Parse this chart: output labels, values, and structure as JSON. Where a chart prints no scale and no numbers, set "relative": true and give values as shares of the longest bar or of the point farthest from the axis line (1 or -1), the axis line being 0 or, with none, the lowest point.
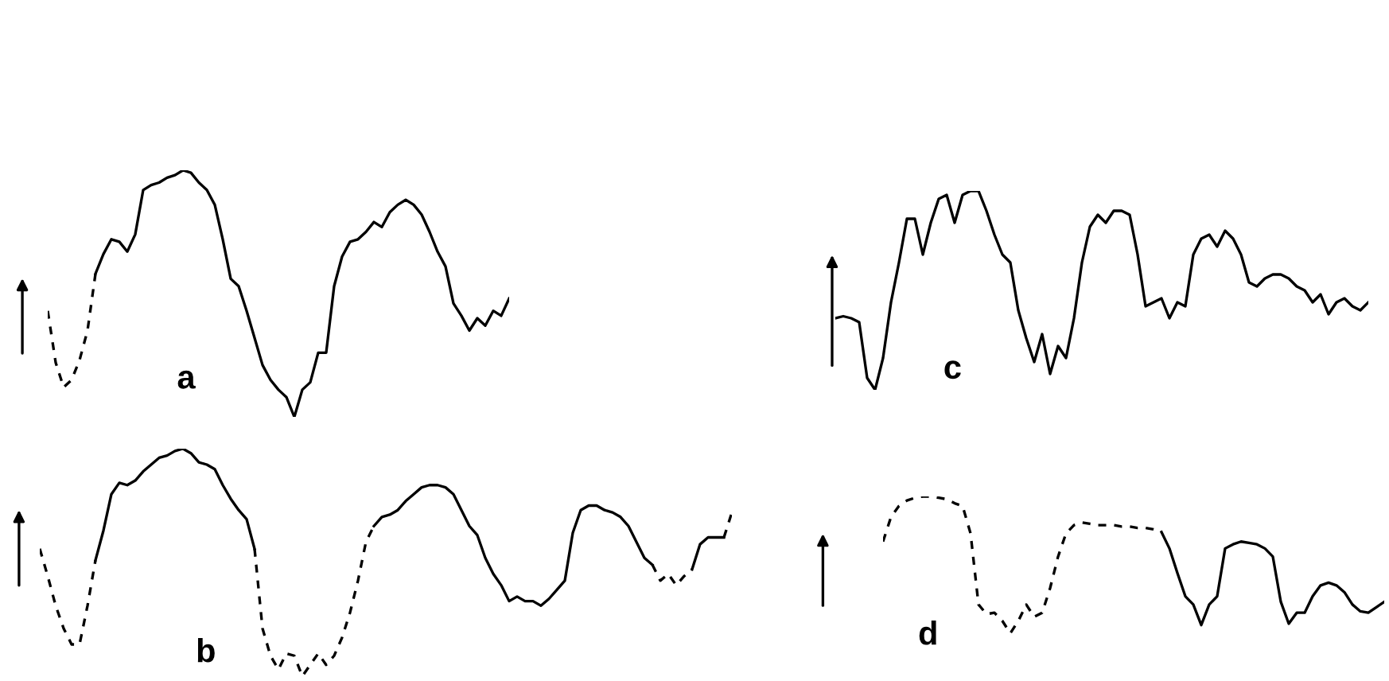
{
  "chart_data": [
    {
      "type": "line",
      "relative": true,
      "annotations": [
        "a"
      ],
      "categories": [
        null,
        null,
        null,
        null,
        null,
        null,
        null,
        null,
        null,
        null,
        null,
        null,
        null,
        null,
        null,
        null,
        null,
        null,
        null,
        null,
        null,
        null,
        null,
        null,
        null,
        null,
        null,
        null,
        null,
        null,
        null,
        null,
        null,
        null,
        null,
        null,
        null,
        null,
        null,
        null,
        null,
        null,
        null,
        null,
        null,
        null,
        null,
        null,
        null,
        null,
        null,
        null,
        null,
        null,
        null,
        null,
        null,
        null,
        null
      ],
      "series": [
        {
          "color": "#000000",
          "line_style": "dashed",
          "values": [
            0.43,
            0.22,
            0.12,
            0.15,
            0.23,
            0.35,
            0.58,
            null,
            null,
            null,
            null,
            null,
            null,
            null,
            null,
            null,
            null,
            null,
            null,
            null,
            null,
            null,
            null,
            null,
            null,
            null,
            null,
            null,
            null,
            null,
            null,
            null,
            null,
            null,
            null,
            null,
            null,
            null,
            null,
            null,
            null,
            null,
            null,
            null,
            null,
            null,
            null,
            null,
            null,
            null,
            null,
            null,
            null,
            null,
            null,
            null,
            null,
            null,
            null
          ]
        },
        {
          "color": "#000000",
          "line_style": "solid",
          "values": [
            null,
            null,
            null,
            null,
            null,
            null,
            0.58,
            0.66,
            0.72,
            0.71,
            0.67,
            0.74,
            0.92,
            0.94,
            0.95,
            0.97,
            0.98,
            1,
            0.99,
            0.95,
            0.92,
            0.86,
            0.72,
            0.56,
            0.53,
            0.43,
            0.32,
            0.21,
            0.15,
            0.11,
            0.08,
            0,
            0.11,
            0.14,
            0.26,
            0.26,
            0.53,
            0.65,
            0.71,
            0.72,
            0.75,
            0.79,
            0.77,
            0.83,
            0.86,
            0.88,
            0.86,
            0.82,
            0.75,
            0.67,
            0.61,
            0.46,
            0.41,
            0.35,
            0.4,
            0.37,
            0.43,
            0.41,
            0.48
          ]
        }
      ]
    },
    {
      "type": "line",
      "relative": true,
      "annotations": [
        "c"
      ],
      "categories": [
        null,
        null,
        null,
        null,
        null,
        null,
        null,
        null,
        null,
        null,
        null,
        null,
        null,
        null,
        null,
        null,
        null,
        null,
        null,
        null,
        null,
        null,
        null,
        null,
        null,
        null,
        null,
        null,
        null,
        null,
        null,
        null,
        null,
        null,
        null,
        null,
        null,
        null,
        null,
        null,
        null,
        null,
        null,
        null,
        null,
        null,
        null,
        null,
        null,
        null,
        null,
        null,
        null,
        null,
        null,
        null,
        null,
        null,
        null,
        null,
        null,
        null,
        null,
        null,
        null,
        null,
        null,
        null
      ],
      "series": [
        {
          "color": "#000000",
          "line_style": "solid",
          "values": [
            0.36,
            0.37,
            0.36,
            0.34,
            0.06,
            0,
            0.16,
            0.44,
            0.64,
            0.86,
            0.86,
            0.68,
            0.84,
            0.96,
            0.98,
            0.84,
            0.98,
            1,
            1,
            0.9,
            0.78,
            0.68,
            0.64,
            0.4,
            0.26,
            0.14,
            0.28,
            0.08,
            0.22,
            0.16,
            0.36,
            0.64,
            0.82,
            0.88,
            0.84,
            0.9,
            0.9,
            0.88,
            0.68,
            0.42,
            0.44,
            0.46,
            0.36,
            0.44,
            0.42,
            0.68,
            0.76,
            0.78,
            0.72,
            0.8,
            0.76,
            0.68,
            0.54,
            0.52,
            0.56,
            0.58,
            0.58,
            0.56,
            0.52,
            0.5,
            0.44,
            0.48,
            0.38,
            0.44,
            0.46,
            0.42,
            0.4,
            0.44
          ]
        }
      ]
    },
    {
      "type": "line",
      "relative": true,
      "annotations": [
        "b"
      ],
      "categories": [
        null,
        null,
        null,
        null,
        null,
        null,
        null,
        null,
        null,
        null,
        null,
        null,
        null,
        null,
        null,
        null,
        null,
        null,
        null,
        null,
        null,
        null,
        null,
        null,
        null,
        null,
        null,
        null,
        null,
        null,
        null,
        null,
        null,
        null,
        null,
        null,
        null,
        null,
        null,
        null,
        null,
        null,
        null,
        null,
        null,
        null,
        null,
        null,
        null,
        null,
        null,
        null,
        null,
        null,
        null,
        null,
        null,
        null,
        null,
        null,
        null,
        null,
        null,
        null,
        null,
        null,
        null,
        null,
        null,
        null,
        null,
        null,
        null,
        null,
        null,
        null,
        null,
        null,
        null,
        null,
        null,
        null,
        null,
        null,
        null,
        null,
        null,
        null
      ],
      "series": [
        {
          "color": "#000000",
          "line_style": "dashed",
          "values": [
            0.56,
            0.44,
            0.31,
            0.21,
            0.14,
            0.14,
            0.31,
            0.51,
            null,
            null,
            null,
            null,
            null,
            null,
            null,
            null,
            null,
            null,
            null,
            null,
            null,
            null,
            null,
            null,
            null,
            null,
            null,
            null,
            null,
            null,
            null,
            null,
            null,
            null,
            null,
            null,
            null,
            null,
            null,
            null,
            null,
            null,
            null,
            null,
            null,
            null,
            null,
            null,
            null,
            null,
            null,
            null,
            null,
            null,
            null,
            null,
            null,
            null,
            null,
            null,
            null,
            null,
            null,
            null,
            null,
            null,
            null,
            null,
            null,
            null,
            null,
            null,
            null,
            null,
            null,
            null,
            null,
            null,
            null,
            null,
            null,
            null,
            null,
            null,
            null,
            null,
            null,
            null
          ]
        },
        {
          "color": "#000000",
          "line_style": "solid",
          "values": [
            null,
            null,
            null,
            null,
            null,
            null,
            null,
            0.51,
            0.64,
            0.8,
            0.85,
            0.84,
            0.86,
            0.9,
            0.93,
            0.96,
            0.97,
            0.99,
            1,
            0.98,
            0.94,
            0.93,
            0.91,
            0.84,
            0.78,
            0.73,
            0.69,
            0.56,
            null,
            null,
            null,
            null,
            null,
            null,
            null,
            null,
            null,
            null,
            null,
            null,
            null,
            null,
            null,
            null,
            null,
            null,
            null,
            null,
            null,
            null,
            null,
            null,
            null,
            null,
            null,
            null,
            null,
            null,
            null,
            null,
            null,
            null,
            null,
            null,
            null,
            null,
            null,
            null,
            null,
            null,
            null,
            null,
            null,
            null,
            null,
            null,
            null,
            null,
            null,
            null,
            null,
            null,
            null,
            null,
            null,
            null,
            null,
            null
          ]
        },
        {
          "color": "#000000",
          "line_style": "dashed",
          "values": [
            null,
            null,
            null,
            null,
            null,
            null,
            null,
            null,
            null,
            null,
            null,
            null,
            null,
            null,
            null,
            null,
            null,
            null,
            null,
            null,
            null,
            null,
            null,
            null,
            null,
            null,
            null,
            0.56,
            0.21,
            0.09,
            0.03,
            0.1,
            0.09,
            0,
            0.05,
            0.1,
            0.05,
            0.09,
            0.17,
            0.28,
            0.42,
            0.59,
            0.66,
            null,
            null,
            null,
            null,
            null,
            null,
            null,
            null,
            null,
            null,
            null,
            null,
            null,
            null,
            null,
            null,
            null,
            null,
            null,
            null,
            null,
            null,
            null,
            null,
            null,
            null,
            null,
            null,
            null,
            null,
            null,
            null,
            null,
            null,
            null,
            null,
            null,
            null,
            null,
            null,
            null,
            null,
            null,
            null,
            null
          ]
        },
        {
          "color": "#000000",
          "line_style": "solid",
          "values": [
            null,
            null,
            null,
            null,
            null,
            null,
            null,
            null,
            null,
            null,
            null,
            null,
            null,
            null,
            null,
            null,
            null,
            null,
            null,
            null,
            null,
            null,
            null,
            null,
            null,
            null,
            null,
            null,
            null,
            null,
            null,
            null,
            null,
            null,
            null,
            null,
            null,
            null,
            null,
            null,
            null,
            null,
            0.66,
            0.7,
            0.71,
            0.73,
            0.77,
            0.8,
            0.83,
            0.84,
            0.84,
            0.83,
            0.8,
            0.73,
            0.66,
            0.62,
            0.52,
            0.45,
            0.4,
            0.33,
            0.35,
            0.33,
            0.33,
            0.31,
            0.34,
            0.38,
            0.42,
            0.63,
            0.73,
            0.75,
            0.75,
            0.73,
            0.72,
            0.7,
            0.66,
            0.59,
            0.52,
            0.49,
            null,
            null,
            null,
            null,
            null,
            null,
            null,
            null,
            null,
            null
          ]
        },
        {
          "color": "#000000",
          "line_style": "dashed",
          "values": [
            null,
            null,
            null,
            null,
            null,
            null,
            null,
            null,
            null,
            null,
            null,
            null,
            null,
            null,
            null,
            null,
            null,
            null,
            null,
            null,
            null,
            null,
            null,
            null,
            null,
            null,
            null,
            null,
            null,
            null,
            null,
            null,
            null,
            null,
            null,
            null,
            null,
            null,
            null,
            null,
            null,
            null,
            null,
            null,
            null,
            null,
            null,
            null,
            null,
            null,
            null,
            null,
            null,
            null,
            null,
            null,
            null,
            null,
            null,
            null,
            null,
            null,
            null,
            null,
            null,
            null,
            null,
            null,
            null,
            null,
            null,
            null,
            null,
            null,
            null,
            null,
            null,
            0.49,
            0.42,
            0.45,
            0.4,
            0.44,
            0.47,
            null,
            null,
            null,
            null,
            null
          ]
        },
        {
          "color": "#000000",
          "line_style": "solid",
          "values": [
            null,
            null,
            null,
            null,
            null,
            null,
            null,
            null,
            null,
            null,
            null,
            null,
            null,
            null,
            null,
            null,
            null,
            null,
            null,
            null,
            null,
            null,
            null,
            null,
            null,
            null,
            null,
            null,
            null,
            null,
            null,
            null,
            null,
            null,
            null,
            null,
            null,
            null,
            null,
            null,
            null,
            null,
            null,
            null,
            null,
            null,
            null,
            null,
            null,
            null,
            null,
            null,
            null,
            null,
            null,
            null,
            null,
            null,
            null,
            null,
            null,
            null,
            null,
            null,
            null,
            null,
            null,
            null,
            null,
            null,
            null,
            null,
            null,
            null,
            null,
            null,
            null,
            null,
            null,
            null,
            null,
            null,
            0.47,
            0.58,
            0.61,
            0.61,
            0.61,
            null
          ]
        },
        {
          "color": "#000000",
          "line_style": "dashed",
          "values": [
            null,
            null,
            null,
            null,
            null,
            null,
            null,
            null,
            null,
            null,
            null,
            null,
            null,
            null,
            null,
            null,
            null,
            null,
            null,
            null,
            null,
            null,
            null,
            null,
            null,
            null,
            null,
            null,
            null,
            null,
            null,
            null,
            null,
            null,
            null,
            null,
            null,
            null,
            null,
            null,
            null,
            null,
            null,
            null,
            null,
            null,
            null,
            null,
            null,
            null,
            null,
            null,
            null,
            null,
            null,
            null,
            null,
            null,
            null,
            null,
            null,
            null,
            null,
            null,
            null,
            null,
            null,
            null,
            null,
            null,
            null,
            null,
            null,
            null,
            null,
            null,
            null,
            null,
            null,
            null,
            null,
            null,
            null,
            null,
            null,
            null,
            0.61,
            0.72
          ]
        }
      ]
    },
    {
      "type": "line",
      "relative": true,
      "annotations": [
        "d"
      ],
      "categories": [
        null,
        null,
        null,
        null,
        null,
        null,
        null,
        null,
        null,
        null,
        null,
        null,
        null,
        null,
        null,
        null,
        null,
        null,
        null,
        null,
        null,
        null,
        null,
        null,
        null,
        null,
        null,
        null,
        null,
        null,
        null,
        null,
        null,
        null,
        null,
        null,
        null,
        null,
        null,
        null,
        null,
        null,
        null,
        null,
        null,
        null,
        null,
        null,
        null,
        null,
        null,
        null,
        null,
        null,
        null,
        null,
        null,
        null,
        null,
        null,
        null,
        null,
        null,
        null
      ],
      "series": [
        {
          "color": "#000000",
          "line_style": "dashed",
          "values": [
            0.67,
            0.85,
            0.93,
            0.97,
            0.99,
            1,
            1,
            0.99,
            0.98,
            0.95,
            0.93,
            0.73,
            0.21,
            0.14,
            0.15,
            0.09,
            0,
            0.09,
            0.21,
            0.12,
            0.15,
            0.33,
            0.56,
            0.73,
            0.79,
            0.81,
            0.8,
            0.79,
            0.79,
            0.79,
            0.78,
            0.78,
            0.77,
            0.77,
            0.76,
            0.74,
            null,
            null,
            null,
            null,
            null,
            null,
            null,
            null,
            null,
            null,
            null,
            null,
            null,
            null,
            null,
            null,
            null,
            null,
            null,
            null,
            null,
            null,
            null,
            null,
            null,
            null,
            null,
            null
          ]
        },
        {
          "color": "#000000",
          "line_style": "solid",
          "values": [
            null,
            null,
            null,
            null,
            null,
            null,
            null,
            null,
            null,
            null,
            null,
            null,
            null,
            null,
            null,
            null,
            null,
            null,
            null,
            null,
            null,
            null,
            null,
            null,
            null,
            null,
            null,
            null,
            null,
            null,
            null,
            null,
            null,
            null,
            null,
            0.74,
            0.62,
            0.44,
            0.27,
            0.21,
            0.06,
            0.21,
            0.27,
            0.62,
            0.65,
            0.67,
            0.66,
            0.65,
            0.62,
            0.56,
            0.23,
            0.07,
            0.15,
            0.15,
            0.27,
            0.35,
            0.37,
            0.35,
            0.3,
            0.21,
            0.16,
            0.15,
            0.19,
            0.23
          ]
        }
      ]
    }
  ]
}
